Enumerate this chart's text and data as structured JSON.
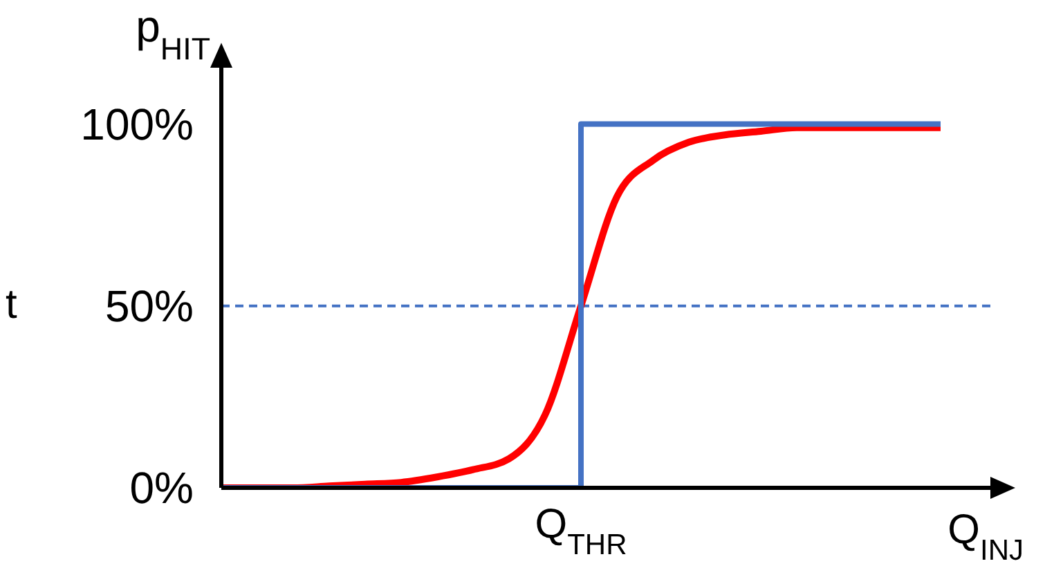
{
  "chart_data": {
    "type": "line",
    "xlabel": "Q$_{INJ}$",
    "ylabel": "p$_{HIT}$",
    "categories": [
      null,
      null,
      null,
      null,
      null,
      null,
      null,
      null,
      null,
      null,
      "Q$_{THR}$",
      null,
      null,
      null,
      null,
      null,
      null,
      null,
      null,
      null,
      null
    ],
    "series": [
      {
        "type": "step",
        "color": "#4472c4",
        "values": [
          0,
          0,
          0,
          0,
          0,
          0,
          0,
          0,
          0,
          0,
          100,
          100,
          100,
          100,
          100,
          100,
          100,
          100,
          100,
          100,
          100
        ]
      },
      {
        "type": "line",
        "color": "#ff0000",
        "values": [
          0,
          0,
          0,
          0.5,
          1,
          1.5,
          3,
          5,
          8,
          20,
          50,
          80,
          90,
          95,
          97,
          98,
          99,
          99,
          99,
          99,
          99
        ]
      }
    ],
    "ylim": [
      0,
      117
    ],
    "yticks": [
      {
        "value": 0,
        "label": "0%"
      },
      {
        "value": 50,
        "label": "50%"
      },
      {
        "value": 100,
        "label": "100%"
      }
    ],
    "ref_lines": [
      {
        "axis": "y",
        "value": 50,
        "color": "#4472c4",
        "line_style": "dashed"
      }
    ],
    "annotations": [
      "t"
    ],
    "marker": "none",
    "grid": false,
    "legend": false
  }
}
